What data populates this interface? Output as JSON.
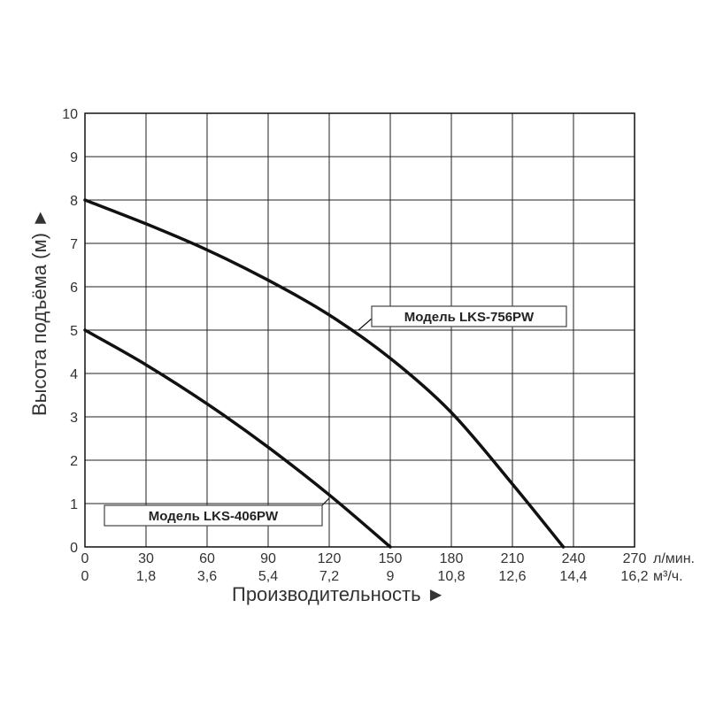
{
  "chart_data": {
    "type": "line",
    "xlabel": "Производительность ►",
    "ylabel": "Высота подъёма (м) ►",
    "x_unit_primary": "л/мин.",
    "x_unit_secondary": "м³/ч.",
    "xlim": [
      0,
      270
    ],
    "ylim": [
      0,
      10
    ],
    "x_ticks": [
      "0",
      "30",
      "60",
      "90",
      "120",
      "150",
      "180",
      "210",
      "240",
      "270"
    ],
    "x_ticks_secondary": [
      "0",
      "1,8",
      "3,6",
      "5,4",
      "7,2",
      "9",
      "10,8",
      "12,6",
      "14,4",
      "16,2"
    ],
    "y_ticks": [
      "0",
      "1",
      "2",
      "3",
      "4",
      "5",
      "6",
      "7",
      "8",
      "9",
      "10"
    ],
    "grid": true,
    "series": [
      {
        "name": "Модель LKS-756PW",
        "color": "#111111",
        "points": [
          [
            0,
            8.0
          ],
          [
            30,
            7.45
          ],
          [
            60,
            6.85
          ],
          [
            90,
            6.15
          ],
          [
            120,
            5.35
          ],
          [
            150,
            4.35
          ],
          [
            180,
            3.1
          ],
          [
            210,
            1.45
          ],
          [
            235,
            0.0
          ]
        ]
      },
      {
        "name": "Модель LKS-406PW",
        "color": "#111111",
        "points": [
          [
            0,
            5.0
          ],
          [
            30,
            4.2
          ],
          [
            60,
            3.3
          ],
          [
            90,
            2.3
          ],
          [
            120,
            1.2
          ],
          [
            150,
            0.0
          ]
        ]
      }
    ]
  }
}
